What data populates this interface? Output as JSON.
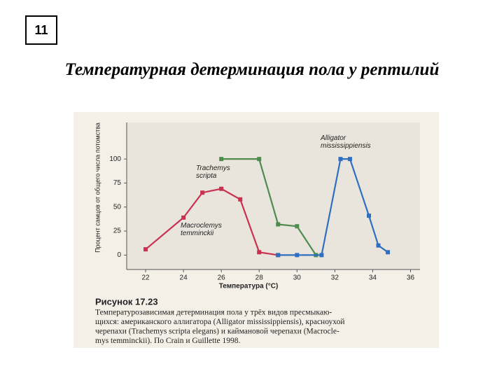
{
  "slide_number": "11",
  "title": "Температурная детерминация пола у рептилий",
  "chart_data": {
    "type": "line",
    "xlabel": "Температура (°C)",
    "ylabel": "Процент самцов от общего числа потомства",
    "xlim": [
      21,
      36.5
    ],
    "xticks": [
      22,
      24,
      26,
      28,
      30,
      32,
      34,
      36
    ],
    "ylim": [
      -15,
      138
    ],
    "yticks": [
      0,
      25,
      50,
      75,
      100
    ],
    "series": [
      {
        "name": "Macroclemys temminckii",
        "color": "#c8314f",
        "x": [
          22,
          24,
          25,
          26,
          27,
          28,
          29
        ],
        "values": [
          6,
          39,
          65,
          69,
          58,
          3,
          0
        ]
      },
      {
        "name": "Trachemys scripta",
        "color": "#4e8c4e",
        "x": [
          26,
          28,
          29,
          30,
          31
        ],
        "values": [
          100,
          100,
          32,
          30,
          0
        ]
      },
      {
        "name": "Alligator mississippiensis",
        "color": "#2f6fbf",
        "x": [
          29,
          30,
          31.3,
          32.3,
          32.8,
          33.8,
          34.3,
          34.8
        ],
        "values": [
          0,
          0,
          0,
          100,
          100,
          41,
          10,
          3
        ]
      }
    ],
    "figure_label": "Рисунок 17.23",
    "caption": [
      "Температурозависимая детерминация пола у трёх видов пресмыкаю-",
      "щихся: американского аллигатора (Alligator mississippiensis), красноухой",
      "черепахи (Trachemys scripta elegans) и каймановой черепахи (Macrocle-",
      "mys temminckii). По Crain и Guillette 1998."
    ]
  }
}
